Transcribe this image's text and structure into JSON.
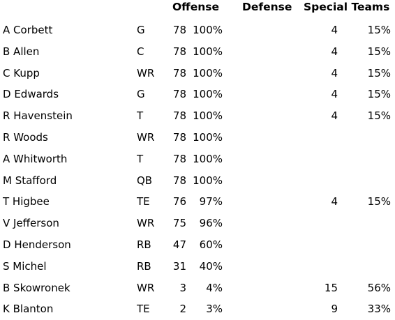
{
  "headers": {
    "offense": "Offense",
    "defense": "Defense",
    "special_teams": "Special Teams"
  },
  "rows": [
    {
      "name": "A Corbett",
      "pos": "G",
      "off_count": "78",
      "off_pct": "100%",
      "st_count": "4",
      "st_pct": "15%"
    },
    {
      "name": "B Allen",
      "pos": "C",
      "off_count": "78",
      "off_pct": "100%",
      "st_count": "4",
      "st_pct": "15%"
    },
    {
      "name": "C Kupp",
      "pos": "WR",
      "off_count": "78",
      "off_pct": "100%",
      "st_count": "4",
      "st_pct": "15%"
    },
    {
      "name": "D Edwards",
      "pos": "G",
      "off_count": "78",
      "off_pct": "100%",
      "st_count": "4",
      "st_pct": "15%"
    },
    {
      "name": "R Havenstein",
      "pos": "T",
      "off_count": "78",
      "off_pct": "100%",
      "st_count": "4",
      "st_pct": "15%"
    },
    {
      "name": "R Woods",
      "pos": "WR",
      "off_count": "78",
      "off_pct": "100%",
      "st_count": "",
      "st_pct": ""
    },
    {
      "name": "A Whitworth",
      "pos": "T",
      "off_count": "78",
      "off_pct": "100%",
      "st_count": "",
      "st_pct": ""
    },
    {
      "name": "M Stafford",
      "pos": "QB",
      "off_count": "78",
      "off_pct": "100%",
      "st_count": "",
      "st_pct": ""
    },
    {
      "name": "T Higbee",
      "pos": "TE",
      "off_count": "76",
      "off_pct": "97%",
      "st_count": "4",
      "st_pct": "15%"
    },
    {
      "name": "V Jefferson",
      "pos": "WR",
      "off_count": "75",
      "off_pct": "96%",
      "st_count": "",
      "st_pct": ""
    },
    {
      "name": "D Henderson",
      "pos": "RB",
      "off_count": "47",
      "off_pct": "60%",
      "st_count": "",
      "st_pct": ""
    },
    {
      "name": "S Michel",
      "pos": "RB",
      "off_count": "31",
      "off_pct": "40%",
      "st_count": "",
      "st_pct": ""
    },
    {
      "name": "B Skowronek",
      "pos": "WR",
      "off_count": "3",
      "off_pct": "4%",
      "st_count": "15",
      "st_pct": "56%"
    },
    {
      "name": "K Blanton",
      "pos": "TE",
      "off_count": "2",
      "off_pct": "3%",
      "st_count": "9",
      "st_pct": "33%"
    }
  ]
}
